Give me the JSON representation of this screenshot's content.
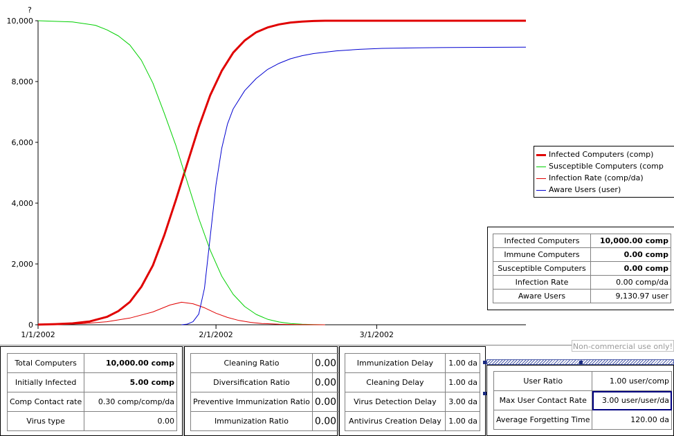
{
  "chart_data": {
    "type": "line",
    "title": "",
    "y_axis_unit_label": "?",
    "xlabel": "",
    "ylabel": "",
    "x_start": "1/1/2002",
    "x_end_day": 85,
    "ylim": [
      0,
      10000
    ],
    "yticks": [
      "0",
      "2,000",
      "4,000",
      "6,000",
      "8,000",
      "10,000"
    ],
    "xticks": [
      {
        "day": 0,
        "label": "1/1/2002"
      },
      {
        "day": 31,
        "label": "2/1/2002"
      },
      {
        "day": 59,
        "label": "3/1/2002"
      }
    ],
    "grid": false,
    "legend_placement": "right",
    "series": [
      {
        "name": "Infected Computers (comp)",
        "color": "#e00000",
        "width": 3,
        "x": [
          0,
          3,
          6,
          9,
          12,
          14,
          16,
          18,
          20,
          22,
          24,
          26,
          28,
          30,
          32,
          34,
          36,
          38,
          40,
          42,
          44,
          46,
          48,
          50,
          85
        ],
        "y": [
          5,
          20,
          45,
          110,
          260,
          450,
          750,
          1250,
          1950,
          2950,
          4100,
          5300,
          6500,
          7550,
          8350,
          8950,
          9350,
          9620,
          9780,
          9880,
          9940,
          9970,
          9990,
          10000,
          10000
        ]
      },
      {
        "name": "Susceptible Computers (comp",
        "color": "#00d000",
        "width": 1,
        "x": [
          0,
          6,
          10,
          12,
          14,
          16,
          18,
          20,
          22,
          24,
          26,
          28,
          30,
          32,
          34,
          36,
          38,
          40,
          42,
          44,
          46,
          48,
          50
        ],
        "y": [
          10000,
          9960,
          9850,
          9700,
          9500,
          9200,
          8700,
          7950,
          6950,
          5900,
          4700,
          3500,
          2450,
          1600,
          1000,
          600,
          340,
          180,
          90,
          40,
          15,
          5,
          0
        ]
      },
      {
        "name": "Infection Rate (comp/da)",
        "color": "#e00000",
        "width": 1,
        "x": [
          0,
          4,
          8,
          12,
          16,
          20,
          23,
          25,
          27,
          29,
          31,
          33,
          35,
          37,
          39,
          42,
          45,
          50
        ],
        "y": [
          0,
          10,
          40,
          100,
          220,
          420,
          650,
          740,
          690,
          560,
          380,
          240,
          140,
          80,
          40,
          15,
          5,
          0
        ]
      },
      {
        "name": "Aware Users (user)",
        "color": "#0000d0",
        "width": 1,
        "x": [
          25,
          26,
          27,
          28,
          29,
          30,
          31,
          32,
          33,
          34,
          36,
          38,
          40,
          42,
          44,
          46,
          48,
          52,
          56,
          60,
          66,
          72,
          78,
          85
        ],
        "y": [
          0,
          20,
          100,
          350,
          1200,
          2900,
          4600,
          5800,
          6600,
          7100,
          7700,
          8100,
          8400,
          8600,
          8750,
          8850,
          8920,
          9010,
          9060,
          9090,
          9110,
          9120,
          9125,
          9130
        ]
      }
    ]
  },
  "stats": [
    {
      "label": "Infected Computers",
      "value": "10,000.00 comp",
      "bold": true
    },
    {
      "label": "Immune Computers",
      "value": "0.00 comp",
      "bold": true
    },
    {
      "label": "Susceptible Computers",
      "value": "0.00 comp",
      "bold": true
    },
    {
      "label": "Infection Rate",
      "value": "0.00 comp/da",
      "bold": false
    },
    {
      "label": "Aware Users",
      "value": "9,130.97 user",
      "bold": false
    }
  ],
  "watermark": "Non-commercial use only!",
  "panel1": [
    {
      "label": "Total Computers",
      "value": "10,000.00 comp",
      "bold": true
    },
    {
      "label": "Initially Infected",
      "value": "5.00 comp",
      "bold": true
    },
    {
      "label": "Comp Contact rate",
      "value": "0.30 comp/comp/da",
      "bold": false
    },
    {
      "label": "Virus type",
      "value": "0.00",
      "bold": false
    }
  ],
  "panel2": [
    {
      "label": "Cleaning Ratio",
      "value": "0.00"
    },
    {
      "label": "Diversification Ratio",
      "value": "0.00"
    },
    {
      "label": "Preventive Immunization Ratio",
      "value": "0.00"
    },
    {
      "label": "Immunization Ratio",
      "value": "0.00"
    }
  ],
  "panel3": [
    {
      "label": "Immunization Delay",
      "value": "1.00 da"
    },
    {
      "label": "Cleaning Delay",
      "value": "1.00 da"
    },
    {
      "label": "Virus Detection Delay",
      "value": "3.00 da"
    },
    {
      "label": "Antivirus Creation Delay",
      "value": "1.00 da"
    }
  ],
  "panel4": [
    {
      "label": "User Ratio",
      "value": "1.00 user/comp"
    },
    {
      "label": "Max User Contact Rate",
      "value": "3.00 user/user/da"
    },
    {
      "label": "Average Forgetting Time",
      "value": "120.00 da"
    }
  ]
}
